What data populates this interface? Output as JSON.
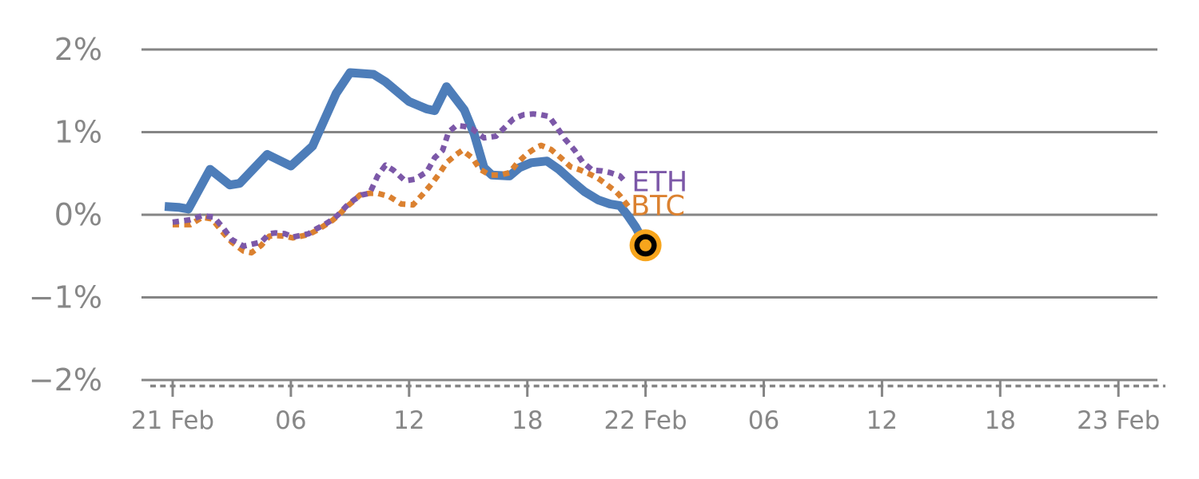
{
  "page": {
    "background": "#ffffff"
  },
  "chart_data": {
    "type": "line",
    "title": "",
    "x_axis": {
      "unit": "hours since 21 Feb 00:00",
      "range_hours": [
        0,
        48
      ],
      "minor_tick_interval_hours": 1,
      "major_ticks": [
        {
          "hour": 0,
          "label": "21 Feb"
        },
        {
          "hour": 6,
          "label": "06"
        },
        {
          "hour": 12,
          "label": "12"
        },
        {
          "hour": 18,
          "label": "18"
        },
        {
          "hour": 24,
          "label": "22 Feb"
        },
        {
          "hour": 30,
          "label": "06"
        },
        {
          "hour": 36,
          "label": "12"
        },
        {
          "hour": 42,
          "label": "18"
        },
        {
          "hour": 48,
          "label": "23 Feb"
        }
      ]
    },
    "y_axis": {
      "unit": "percent change",
      "range": [
        -2,
        2
      ],
      "grid": true,
      "ticks": [
        {
          "value": 2,
          "label": "2%"
        },
        {
          "value": 1,
          "label": "1%"
        },
        {
          "value": 0,
          "label": "0%"
        },
        {
          "value": -1,
          "label": "−1%"
        },
        {
          "value": -2,
          "label": "−2%"
        }
      ]
    },
    "colors": {
      "axis_text": "#878787",
      "grid": "#858585",
      "main": "#4D7DB9",
      "eth": "#7C58A8",
      "btc": "#DB8130",
      "marker_fill": "#F7A51C",
      "marker_ring": "#000000"
    },
    "series": [
      {
        "id": "main",
        "label": "",
        "color": "#4D7DB9",
        "line_style": "solid",
        "points": [
          [
            -0.4,
            0.1
          ],
          [
            0.3,
            0.09
          ],
          [
            0.8,
            0.07
          ],
          [
            1.9,
            0.55
          ],
          [
            2.9,
            0.36
          ],
          [
            3.4,
            0.38
          ],
          [
            4.8,
            0.73
          ],
          [
            6.0,
            0.59
          ],
          [
            7.1,
            0.83
          ],
          [
            8.3,
            1.47
          ],
          [
            9.0,
            1.72
          ],
          [
            10.2,
            1.7
          ],
          [
            10.8,
            1.61
          ],
          [
            12.0,
            1.37
          ],
          [
            12.9,
            1.28
          ],
          [
            13.3,
            1.26
          ],
          [
            13.9,
            1.55
          ],
          [
            14.8,
            1.27
          ],
          [
            15.3,
            0.98
          ],
          [
            15.8,
            0.57
          ],
          [
            16.2,
            0.48
          ],
          [
            17.1,
            0.47
          ],
          [
            17.6,
            0.57
          ],
          [
            18.2,
            0.63
          ],
          [
            19.0,
            0.65
          ],
          [
            19.6,
            0.55
          ],
          [
            20.3,
            0.4
          ],
          [
            20.9,
            0.28
          ],
          [
            21.6,
            0.18
          ],
          [
            22.2,
            0.13
          ],
          [
            22.7,
            0.11
          ],
          [
            23.1,
            -0.01
          ],
          [
            23.5,
            -0.15
          ],
          [
            24.0,
            -0.37
          ]
        ]
      },
      {
        "id": "btc",
        "label": "BTC",
        "color": "#DB8130",
        "line_style": "dotted",
        "points": [
          [
            0.0,
            -0.12
          ],
          [
            0.9,
            -0.12
          ],
          [
            1.5,
            -0.03
          ],
          [
            2.0,
            -0.05
          ],
          [
            2.5,
            -0.2
          ],
          [
            3.0,
            -0.33
          ],
          [
            3.6,
            -0.44
          ],
          [
            4.0,
            -0.46
          ],
          [
            4.5,
            -0.37
          ],
          [
            4.9,
            -0.26
          ],
          [
            5.2,
            -0.25
          ],
          [
            5.7,
            -0.26
          ],
          [
            6.1,
            -0.28
          ],
          [
            6.5,
            -0.26
          ],
          [
            6.9,
            -0.24
          ],
          [
            7.3,
            -0.19
          ],
          [
            7.7,
            -0.13
          ],
          [
            8.1,
            -0.07
          ],
          [
            8.4,
            -0.01
          ],
          [
            8.8,
            0.09
          ],
          [
            9.2,
            0.17
          ],
          [
            9.5,
            0.24
          ],
          [
            10.0,
            0.26
          ],
          [
            10.4,
            0.26
          ],
          [
            11.0,
            0.22
          ],
          [
            11.6,
            0.13
          ],
          [
            12.2,
            0.12
          ],
          [
            12.7,
            0.25
          ],
          [
            13.2,
            0.39
          ],
          [
            13.6,
            0.52
          ],
          [
            13.9,
            0.63
          ],
          [
            14.4,
            0.73
          ],
          [
            14.7,
            0.78
          ],
          [
            15.2,
            0.69
          ],
          [
            15.6,
            0.55
          ],
          [
            16.1,
            0.48
          ],
          [
            16.6,
            0.48
          ],
          [
            17.1,
            0.51
          ],
          [
            17.5,
            0.63
          ],
          [
            18.0,
            0.74
          ],
          [
            18.5,
            0.82
          ],
          [
            18.7,
            0.84
          ],
          [
            19.2,
            0.79
          ],
          [
            19.7,
            0.69
          ],
          [
            20.2,
            0.58
          ],
          [
            20.6,
            0.55
          ],
          [
            21.1,
            0.5
          ],
          [
            21.6,
            0.44
          ],
          [
            22.0,
            0.37
          ],
          [
            22.5,
            0.28
          ],
          [
            22.7,
            0.23
          ],
          [
            23.2,
            0.08
          ]
        ]
      },
      {
        "id": "eth",
        "label": "ETH",
        "color": "#7C58A8",
        "line_style": "dotted",
        "points": [
          [
            0.0,
            -0.09
          ],
          [
            0.9,
            -0.06
          ],
          [
            1.5,
            -0.01
          ],
          [
            2.1,
            -0.03
          ],
          [
            2.6,
            -0.17
          ],
          [
            3.0,
            -0.3
          ],
          [
            3.6,
            -0.38
          ],
          [
            4.5,
            -0.33
          ],
          [
            4.9,
            -0.23
          ],
          [
            5.2,
            -0.22
          ],
          [
            5.7,
            -0.23
          ],
          [
            6.1,
            -0.27
          ],
          [
            6.5,
            -0.25
          ],
          [
            6.9,
            -0.23
          ],
          [
            7.3,
            -0.17
          ],
          [
            7.7,
            -0.12
          ],
          [
            8.1,
            -0.06
          ],
          [
            8.4,
            0.0
          ],
          [
            8.8,
            0.1
          ],
          [
            9.2,
            0.18
          ],
          [
            9.6,
            0.24
          ],
          [
            10.0,
            0.26
          ],
          [
            10.4,
            0.47
          ],
          [
            10.8,
            0.6
          ],
          [
            11.2,
            0.54
          ],
          [
            11.8,
            0.41
          ],
          [
            12.3,
            0.43
          ],
          [
            12.9,
            0.52
          ],
          [
            13.3,
            0.69
          ],
          [
            13.7,
            0.78
          ],
          [
            14.0,
            1.0
          ],
          [
            14.4,
            1.08
          ],
          [
            14.8,
            1.07
          ],
          [
            15.2,
            1.04
          ],
          [
            15.8,
            0.93
          ],
          [
            16.4,
            0.95
          ],
          [
            17.3,
            1.16
          ],
          [
            17.8,
            1.21
          ],
          [
            18.3,
            1.22
          ],
          [
            18.7,
            1.21
          ],
          [
            19.1,
            1.19
          ],
          [
            19.5,
            1.06
          ],
          [
            19.9,
            0.92
          ],
          [
            20.4,
            0.78
          ],
          [
            20.8,
            0.64
          ],
          [
            21.3,
            0.54
          ],
          [
            21.8,
            0.53
          ],
          [
            22.2,
            0.51
          ],
          [
            22.7,
            0.47
          ],
          [
            23.0,
            0.39
          ]
        ]
      }
    ],
    "end_marker": {
      "series": "main",
      "hour": 24.0,
      "value": -0.37
    },
    "series_labels": [
      {
        "id": "eth",
        "text": "ETH",
        "color": "#7C58A8",
        "hour": 23.3,
        "value": 0.39
      },
      {
        "id": "btc",
        "text": "BTC",
        "color": "#DB8130",
        "hour": 23.25,
        "value": 0.1
      }
    ]
  }
}
